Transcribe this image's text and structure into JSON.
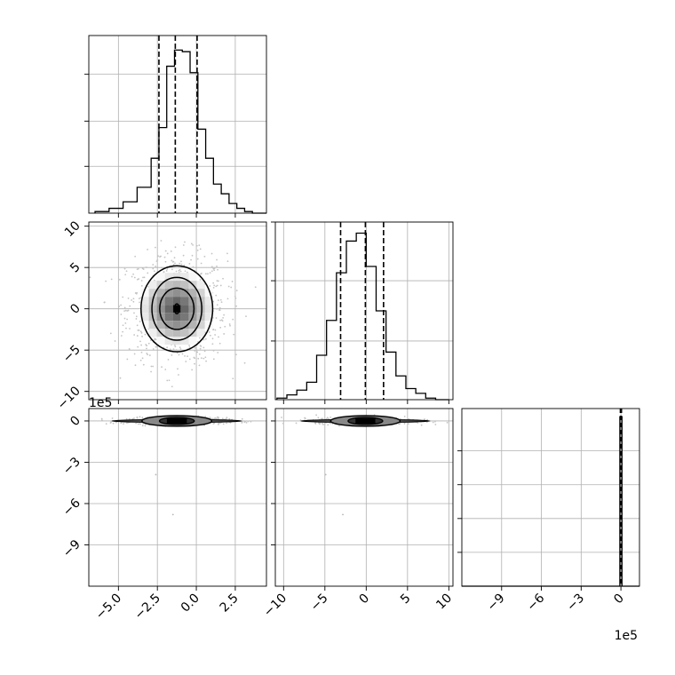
{
  "chart_data": {
    "type": "corner",
    "grid": true,
    "panels": [
      {
        "id": "hist-p1",
        "type": "histogram",
        "bin_edges": [
          -6.5,
          -5.6,
          -4.7,
          -3.8,
          -2.9,
          -2.4,
          -1.9,
          -1.4,
          -0.9,
          -0.4,
          0.1,
          0.6,
          1.1,
          1.6,
          2.1,
          2.6,
          3.1,
          3.6,
          4.5
        ],
        "counts": [
          1,
          3,
          7,
          16,
          34,
          53,
          91,
          101,
          100,
          87,
          52,
          34,
          18,
          12,
          6,
          3,
          1,
          0
        ],
        "quantiles": [
          -2.4,
          -1.35,
          0.05
        ],
        "xlim": [
          -6.9,
          4.5
        ],
        "ylim": [
          0,
          110
        ],
        "ytick_values": [
          29,
          57,
          86
        ],
        "tick_labels_shown": false
      },
      {
        "id": "contour-p2-vs-p1",
        "type": "contour2d",
        "x_center": -1.25,
        "y_center": 0,
        "contour_levels": [
          {
            "rx": 2.3,
            "ry": 5.2
          },
          {
            "rx": 1.6,
            "ry": 3.8
          },
          {
            "rx": 1.1,
            "ry": 2.5
          },
          {
            "rx": 0.15,
            "ry": 0.6
          }
        ],
        "xlim": [
          -6.9,
          4.5
        ],
        "ylim": [
          -11,
          10.5
        ],
        "ytick_labels": [
          "10",
          "5",
          "0",
          "−5",
          "−10"
        ],
        "ytick_values": [
          10,
          5,
          0,
          -5,
          -10
        ]
      },
      {
        "id": "hist-p2",
        "type": "histogram",
        "bin_edges": [
          -10.8,
          -9.6,
          -8.4,
          -7.2,
          -6,
          -4.8,
          -3.6,
          -2.4,
          -1.2,
          0,
          1.2,
          2.4,
          3.6,
          4.8,
          6,
          7.2,
          8.4,
          10
        ],
        "counts": [
          1,
          3,
          6,
          11,
          28,
          50,
          80,
          100,
          105,
          84,
          56,
          30,
          15,
          7,
          4,
          1,
          0
        ],
        "quantiles": [
          -3.1,
          -0.1,
          2.1
        ],
        "xlim": [
          -11,
          10.5
        ],
        "ylim": [
          0,
          112
        ],
        "ytick_values": [
          37,
          75,
          112
        ],
        "tick_labels_shown": false
      },
      {
        "id": "contour-p3-vs-p1",
        "type": "contour2d",
        "x_center": -1.25,
        "y_center": 0,
        "xlim": [
          -6.9,
          4.5
        ],
        "ylim": [
          -12,
          0.9
        ],
        "ytick_labels": [
          "0",
          "−3",
          "−6",
          "−9"
        ],
        "ytick_values": [
          0,
          -3,
          -6,
          -9
        ],
        "offset_text": "1e5",
        "xtick_labels": [
          "−5.0",
          "−2.5",
          "0.0",
          "2.5"
        ],
        "xtick_values": [
          -5,
          -2.5,
          0,
          2.5
        ]
      },
      {
        "id": "contour-p3-vs-p2",
        "type": "contour2d",
        "x_center": -0.1,
        "y_center": 0,
        "xlim": [
          -11,
          10.5
        ],
        "ylim": [
          -12,
          0.9
        ],
        "xtick_labels": [
          "−10",
          "−5",
          "0",
          "5",
          "10"
        ],
        "xtick_values": [
          -10,
          -5,
          0,
          5,
          10
        ]
      },
      {
        "id": "hist-p3",
        "type": "histogram",
        "bin_value": 0,
        "quantiles": [
          -0.05,
          0,
          0.05
        ],
        "xlim": [
          -12,
          1.4
        ],
        "ylim": [
          0,
          1.05
        ],
        "ytick_values": [
          0.2,
          0.4,
          0.6,
          0.8
        ],
        "tick_labels_shown": false,
        "xtick_labels": [
          "−9",
          "−6",
          "−3",
          "0"
        ],
        "xtick_values": [
          -9,
          -6,
          -3,
          0
        ],
        "offset_text": "1e5"
      }
    ]
  }
}
